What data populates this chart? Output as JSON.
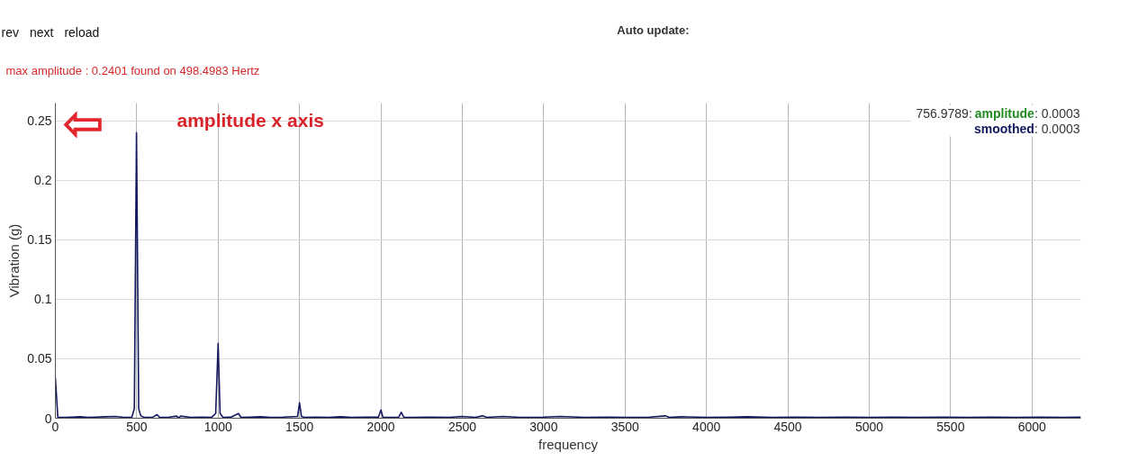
{
  "chart_data": {
    "type": "line",
    "subtitle": "max amplitude : 0.2401 found on 498.4983 Hertz",
    "xlabel": "frequency",
    "ylabel": "Vibration (g)",
    "xlim": [
      0,
      6300
    ],
    "ylim": [
      0,
      0.265
    ],
    "xticks": [
      0,
      500,
      1000,
      1500,
      2000,
      2500,
      3000,
      3500,
      4000,
      4500,
      5000,
      5500,
      6000
    ],
    "yticks": [
      0,
      0.05,
      0.1,
      0.15,
      0.2,
      0.25
    ],
    "grid": true,
    "legend": "top right",
    "annotations": [
      "rev",
      "next",
      "reload",
      "Auto update:",
      "756.9789:",
      ": 0.0003",
      ": 0.0003",
      "⇦",
      "amplitude x axis"
    ],
    "x": [
      0,
      15,
      60,
      100,
      150,
      200,
      250,
      300,
      370,
      420,
      470,
      485,
      498.4983,
      512,
      525,
      545,
      600,
      625,
      640,
      700,
      745,
      756.9789,
      770,
      830,
      900,
      960,
      985,
      1000,
      1012,
      1030,
      1080,
      1125,
      1140,
      1200,
      1260,
      1320,
      1400,
      1488,
      1500,
      1512,
      1530,
      1600,
      1680,
      1750,
      1820,
      1900,
      1985,
      2000,
      2012,
      2060,
      2110,
      2125,
      2140,
      2200,
      2300,
      2420,
      2500,
      2580,
      2625,
      2650,
      2750,
      2850,
      3000,
      3100,
      3250,
      3400,
      3500,
      3650,
      3750,
      3770,
      3850,
      4000,
      4150,
      4250,
      4400,
      4550,
      4700,
      4850,
      5000,
      5150,
      5300,
      5450,
      5600,
      5750,
      5900,
      6050,
      6200,
      6300
    ],
    "series": [
      {
        "name": "amplitude",
        "color": "#218a21",
        "values": [
          null,
          null,
          null,
          null,
          null,
          null,
          null,
          null,
          null,
          null,
          null,
          null,
          null,
          null,
          null,
          null,
          null,
          null,
          null,
          null,
          null,
          null,
          null,
          null,
          null,
          null,
          null,
          null,
          null,
          null,
          null,
          null,
          null,
          null,
          null,
          null,
          null,
          null,
          null,
          null,
          null,
          null,
          null,
          null,
          null,
          null,
          null,
          null,
          null,
          null,
          null,
          null,
          null,
          null,
          null,
          null,
          null,
          null,
          null,
          null,
          null,
          null,
          null,
          null,
          null,
          null,
          null,
          null,
          null,
          null,
          null,
          null,
          null,
          null,
          null,
          null,
          null,
          null,
          null,
          null,
          null,
          null,
          null,
          null,
          null,
          null,
          null,
          null
        ]
      },
      {
        "name": "smoothed",
        "color": "#14185e",
        "values": [
          0.034,
          0.001,
          0.0008,
          0.001,
          0.0012,
          0.0008,
          0.001,
          0.0012,
          0.0015,
          0.0008,
          0.001,
          0.008,
          0.2401,
          0.008,
          0.002,
          0.0008,
          0.001,
          0.003,
          0.0008,
          0.001,
          0.0018,
          0.0003,
          0.0018,
          0.0008,
          0.001,
          0.0008,
          0.004,
          0.063,
          0.004,
          0.0008,
          0.001,
          0.004,
          0.0008,
          0.001,
          0.0012,
          0.0008,
          0.001,
          0.0015,
          0.013,
          0.0015,
          0.0008,
          0.001,
          0.0008,
          0.0012,
          0.0008,
          0.001,
          0.001,
          0.007,
          0.001,
          0.0008,
          0.001,
          0.005,
          0.001,
          0.0008,
          0.001,
          0.0008,
          0.0015,
          0.0008,
          0.002,
          0.0008,
          0.0015,
          0.0008,
          0.001,
          0.0015,
          0.0008,
          0.001,
          0.0008,
          0.001,
          0.002,
          0.0008,
          0.0012,
          0.0008,
          0.001,
          0.0012,
          0.0008,
          0.001,
          0.0008,
          0.001,
          0.0008,
          0.001,
          0.0008,
          0.001,
          0.0008,
          0.001,
          0.0008,
          0.001,
          0.0008,
          0.001
        ]
      }
    ]
  }
}
